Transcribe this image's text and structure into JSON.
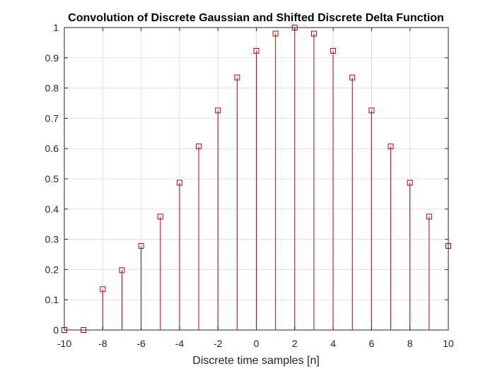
{
  "chart_data": {
    "type": "stem",
    "title": "Convolution of Discrete Gaussian and Shifted Discrete Delta Function",
    "xlabel": "Discrete time samples [n]",
    "ylabel": "",
    "xlim": [
      -10,
      10
    ],
    "ylim": [
      0,
      1
    ],
    "x": [
      -10,
      -9,
      -8,
      -7,
      -6,
      -5,
      -4,
      -3,
      -2,
      -1,
      0,
      1,
      2,
      3,
      4,
      5,
      6,
      7,
      8,
      9,
      10
    ],
    "values": [
      0,
      0,
      0.135,
      0.198,
      0.278,
      0.375,
      0.487,
      0.607,
      0.726,
      0.835,
      0.923,
      0.98,
      1.0,
      0.98,
      0.923,
      0.835,
      0.726,
      0.607,
      0.487,
      0.375,
      0.278
    ],
    "xticks": [
      -10,
      -8,
      -6,
      -4,
      -2,
      0,
      2,
      4,
      6,
      8,
      10
    ],
    "xtick_labels": [
      "-10",
      "-8",
      "-6",
      "-4",
      "-2",
      "0",
      "2",
      "4",
      "6",
      "8",
      "10"
    ],
    "yticks": [
      0,
      0.1,
      0.2,
      0.3,
      0.4,
      0.5,
      0.6,
      0.7,
      0.8,
      0.9,
      1
    ],
    "ytick_labels": [
      "0",
      "0.1",
      "0.2",
      "0.3",
      "0.4",
      "0.5",
      "0.6",
      "0.7",
      "0.8",
      "0.9",
      "1"
    ],
    "marker": "square",
    "grid": true,
    "colors": {
      "stem": "#c00000",
      "grid": "#dfdfdf",
      "axes": "#262626"
    }
  }
}
